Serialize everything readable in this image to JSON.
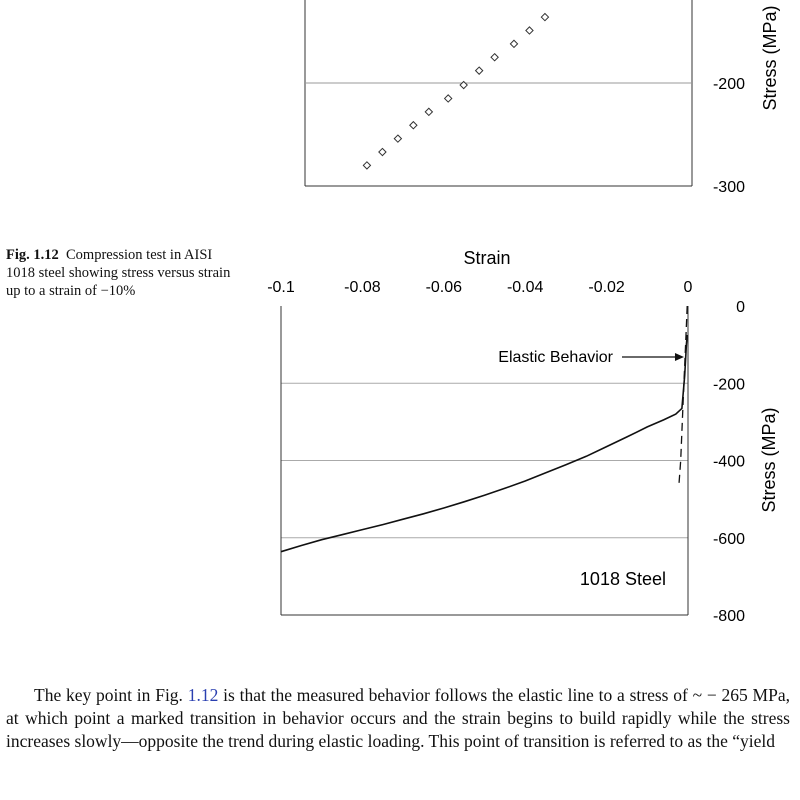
{
  "figure_caption": {
    "label": "Fig. 1.12",
    "text": "Compression test in AISI 1018 steel showing stress versus strain up to a strain of −10%"
  },
  "body": {
    "before": "The key point in Fig. ",
    "figure_ref": "1.12",
    "after": " is that the measured behavior follows the elastic line to a stress of ~ − 265 MPa, at which point a marked transition in behavior occurs and the strain begins to build rapidly while the stress increases slowly—opposite the trend during elastic loading. This point of transition is referred to as the “yield"
  },
  "chart_data": [
    {
      "type": "scatter",
      "title": "",
      "ylabel": "Stress (MPa)",
      "ytick_labels": [
        "-200",
        "-300"
      ],
      "ylim": [
        -300,
        -125
      ],
      "xlim": [
        -0.1,
        0
      ],
      "series": [
        {
          "marker": "open-diamond",
          "x": [
            -0.084,
            -0.08,
            -0.076,
            -0.072,
            -0.068,
            -0.063,
            -0.059,
            -0.055,
            -0.051,
            -0.046,
            -0.042,
            -0.038
          ],
          "y": [
            -280,
            -267,
            -254,
            -241,
            -228,
            -215,
            -202,
            -188,
            -175,
            -162,
            -149,
            -136
          ]
        }
      ]
    },
    {
      "type": "line",
      "xlabel": "Strain",
      "ylabel": "Stress (MPa)",
      "xlim": [
        -0.1,
        0
      ],
      "ylim": [
        -800,
        0
      ],
      "xticks": [
        -0.1,
        -0.08,
        -0.06,
        -0.04,
        -0.02,
        0
      ],
      "xtick_labels": [
        "-0.1",
        "-0.08",
        "-0.06",
        "-0.04",
        "-0.02",
        "0"
      ],
      "yticks": [
        0,
        -200,
        -400,
        -600,
        -800
      ],
      "ytick_labels": [
        "0",
        "-200",
        "-400",
        "-600",
        "-800"
      ],
      "grid": "horizontal",
      "annotations": [
        {
          "text": "Elastic Behavior",
          "arrow_to": [
            -0.0005,
            -110
          ]
        },
        {
          "text": "1018 Steel"
        }
      ],
      "series": [
        {
          "style": "solid",
          "x": [
            -0.1,
            -0.095,
            -0.09,
            -0.085,
            -0.08,
            -0.075,
            -0.07,
            -0.065,
            -0.06,
            -0.055,
            -0.05,
            -0.045,
            -0.04,
            -0.035,
            -0.03,
            -0.025,
            -0.02,
            -0.015,
            -0.01,
            -0.006,
            -0.003,
            -0.0015,
            -0.0008,
            -0.0004,
            -0.0002
          ],
          "y": [
            -636,
            -620,
            -605,
            -592,
            -579,
            -566,
            -552,
            -538,
            -523,
            -507,
            -490,
            -472,
            -453,
            -432,
            -411,
            -389,
            -364,
            -339,
            -313,
            -295,
            -280,
            -265,
            -180,
            -100,
            -75
          ]
        },
        {
          "style": "dashed",
          "x": [
            -0.0002,
            -0.0006,
            -0.001,
            -0.0014,
            -0.0018,
            -0.0022
          ],
          "y": [
            0,
            -100,
            -200,
            -300,
            -400,
            -460
          ]
        }
      ]
    }
  ]
}
